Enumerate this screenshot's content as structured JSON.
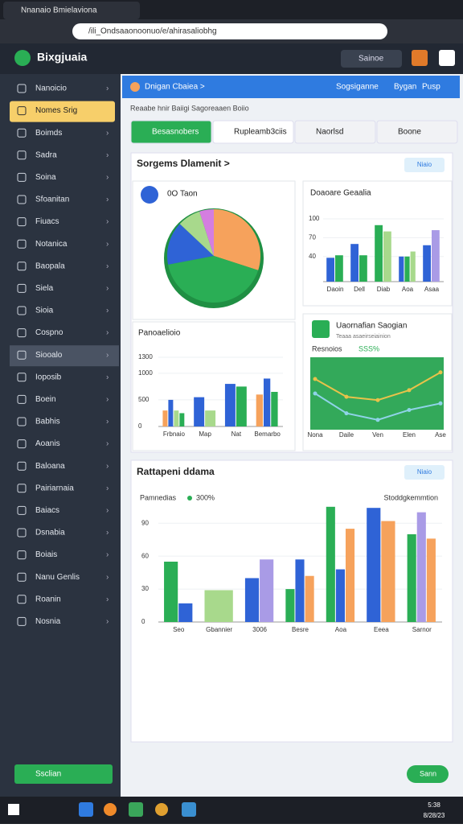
{
  "browser": {
    "tab_title": "Nnanaio Bmielaviona",
    "url": "/ili_Ondsaaonoonuo/e/ahirasaliobhg"
  },
  "app": {
    "name": "Bixgjuaia",
    "search_button": "Sainoe"
  },
  "sidebar": {
    "items": [
      "Nanoicio",
      "Nomes Srig",
      "Boimds",
      "Sadra",
      "Soina",
      "Sfoanitan",
      "Fiuacs",
      "Notanica",
      "Baopala",
      "Siela",
      "Sioia",
      "Cospno",
      "Siooalo",
      "Ioposib",
      "Boein",
      "Babhis",
      "Aoanis",
      "Baloana",
      "Pairiarnaia",
      "Baiacs",
      "Dsnabia",
      "Boiais",
      "Nanu Genlis",
      "Roanin",
      "Nosnia"
    ],
    "active": 1,
    "selected": 12,
    "footer_button": "Ssclian"
  },
  "header_bar": {
    "title": "Dnigan Cbaiea >",
    "links": [
      "Sogsiganne",
      "Bygan",
      "Pusp"
    ]
  },
  "breadcrumb": "Reaabe hnir Baiigi Sagoreaaen Boiio",
  "tabs": [
    "Besasnobers",
    "Rupleamb3ciis",
    "Naorlsd",
    "Boone"
  ],
  "section": {
    "title": "Sorgems Dlamenit >",
    "action": "Niaio"
  },
  "pie": {
    "title": "0O Taon",
    "values": [
      30,
      42,
      15,
      8,
      5
    ],
    "colors": [
      "#f6a25c",
      "#2aae55",
      "#2f63d6",
      "#a8d98c",
      "#d47ee0"
    ]
  },
  "bar_top": {
    "title": "Doaoare Geaalia",
    "categories": [
      "Daoin",
      "Dell",
      "Diab",
      "Aoa",
      "Asaa"
    ],
    "ylim": [
      0,
      100
    ],
    "yticks": [
      40,
      70,
      100
    ],
    "series": [
      {
        "color": "#2f63d6",
        "values": [
          38,
          60,
          null,
          40,
          58
        ]
      },
      {
        "color": "#2aae55",
        "values": [
          42,
          42,
          90,
          40,
          null
        ]
      },
      {
        "color": "#a8d98c",
        "values": [
          null,
          null,
          80,
          48,
          null
        ]
      },
      {
        "color": "#a99be6",
        "values": [
          null,
          null,
          null,
          null,
          82
        ]
      }
    ]
  },
  "bar_left": {
    "title": "Panoaelioio",
    "categories": [
      "Frbnaio",
      "Map",
      "Nat",
      "Bemarbo"
    ],
    "ylim": [
      0,
      1300
    ],
    "yticks": [
      0,
      500,
      1000,
      1300
    ],
    "series": [
      {
        "color": "#f6a25c",
        "values": [
          300,
          null,
          null,
          600
        ]
      },
      {
        "color": "#2f63d6",
        "values": [
          500,
          550,
          800,
          900
        ]
      },
      {
        "color": "#a8d98c",
        "values": [
          300,
          300,
          null,
          null
        ]
      },
      {
        "color": "#2aae55",
        "values": [
          250,
          null,
          750,
          650
        ]
      }
    ]
  },
  "line_card": {
    "title": "Uaornafian Saogian",
    "subtitle": "Teaaa asaeirseiainion",
    "metric_label": "Resnoios",
    "metric_value": "SSS%",
    "categories": [
      "Nona",
      "Daile",
      "Ven",
      "Elen",
      "Ase"
    ],
    "ylim": [
      0,
      100
    ],
    "series": [
      {
        "color": "#e8c24a",
        "values": [
          72,
          45,
          40,
          55,
          82
        ]
      },
      {
        "color": "#8fd3e8",
        "values": [
          50,
          20,
          10,
          25,
          35
        ]
      }
    ]
  },
  "main_chart": {
    "title": "Rattapeni ddama",
    "action": "Niaio",
    "legend_label": "Pamnedias",
    "legend_value": "300%",
    "right_label": "Stoddgkemmtion",
    "categories": [
      "Seo",
      "Gbannier",
      "3006",
      "Besre",
      "Aoa",
      "Eeea",
      "Sarnor"
    ],
    "ylim": [
      0,
      110
    ],
    "yticks": [
      0,
      30,
      60,
      90
    ],
    "series": [
      {
        "color": "#2aae55",
        "values": [
          55,
          null,
          null,
          30,
          105,
          null,
          80
        ]
      },
      {
        "color": "#2f63d6",
        "values": [
          17,
          null,
          40,
          57,
          48,
          104,
          null
        ]
      },
      {
        "color": "#a8d98c",
        "values": [
          null,
          29,
          null,
          null,
          null,
          null,
          null
        ]
      },
      {
        "color": "#a99be6",
        "values": [
          null,
          null,
          57,
          null,
          null,
          null,
          100
        ]
      },
      {
        "color": "#f6a25c",
        "values": [
          null,
          null,
          null,
          42,
          85,
          92,
          76
        ]
      }
    ]
  },
  "fab": "Sann",
  "taskbar": {
    "time": "5:38",
    "date": "8/28/23"
  }
}
